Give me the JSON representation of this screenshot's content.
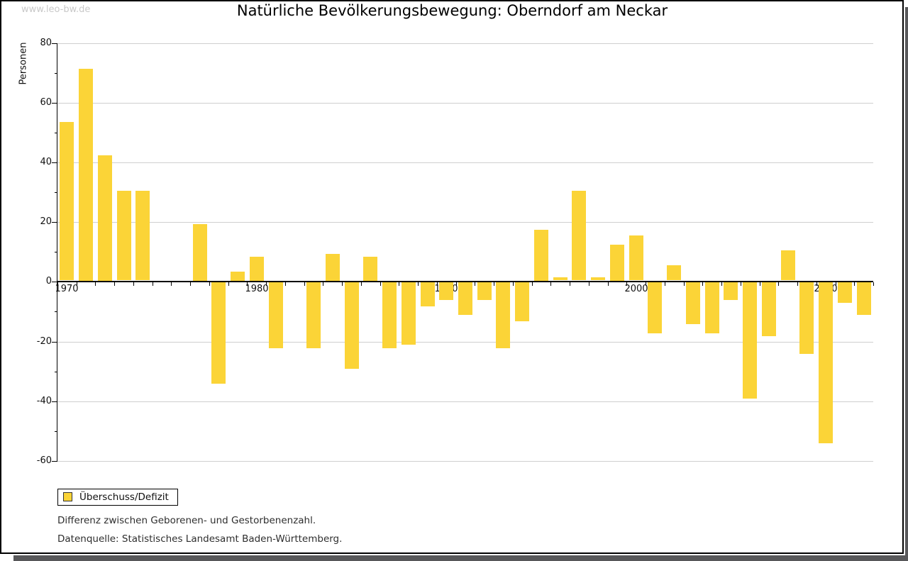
{
  "watermark": "www.leo-bw.de",
  "title": "Natürliche Bevölkerungsbewegung: Oberndorf am Neckar",
  "legend": {
    "label": "Überschuss/Defizit"
  },
  "notes": {
    "line1": "Differenz zwischen Geborenen- und Gestorbenenzahl.",
    "line2": "Datenquelle: Statistisches Landesamt Baden-Württemberg."
  },
  "chart_data": {
    "type": "bar",
    "title": "Natürliche Bevölkerungsbewegung: Oberndorf am Neckar",
    "xlabel": "",
    "ylabel": "Personen",
    "categories": [
      1970,
      1971,
      1972,
      1973,
      1974,
      1975,
      1976,
      1977,
      1978,
      1979,
      1980,
      1981,
      1982,
      1983,
      1984,
      1985,
      1986,
      1987,
      1988,
      1989,
      1990,
      1991,
      1992,
      1993,
      1994,
      1995,
      1996,
      1997,
      1998,
      1999,
      2000,
      2001,
      2002,
      2003,
      2004,
      2005,
      2006,
      2007,
      2008,
      2009,
      2010,
      2011,
      2012
    ],
    "series": [
      {
        "name": "Überschuss/Defizit",
        "values": [
          53,
          71,
          42,
          30,
          30,
          0,
          0,
          19,
          -34,
          3,
          8,
          -22,
          0,
          -22,
          9,
          -29,
          8,
          -22,
          -21,
          -8,
          -6,
          -11,
          -6,
          -22,
          -13,
          17,
          1,
          30,
          1,
          12,
          15,
          -17,
          5,
          -14,
          -17,
          -6,
          -39,
          -18,
          10,
          -24,
          -54,
          -7,
          -11
        ]
      }
    ],
    "y_ticks": [
      80,
      60,
      40,
      20,
      0,
      -20,
      -40,
      -60
    ],
    "y_minor_ticks": [
      70,
      50,
      30,
      10,
      -10,
      -30,
      -50
    ],
    "x_tick_labels": [
      "1970",
      "1980",
      "1990",
      "2000",
      "2010"
    ],
    "x_tick_label_years": [
      1970,
      1980,
      1990,
      2000,
      2010
    ],
    "ylim": [
      -60,
      80
    ],
    "grid": true,
    "legend_position": "bottom-left",
    "bar_color": "#FBD437",
    "grid_color": "#cfcfcf",
    "axis_color": "#000000"
  }
}
